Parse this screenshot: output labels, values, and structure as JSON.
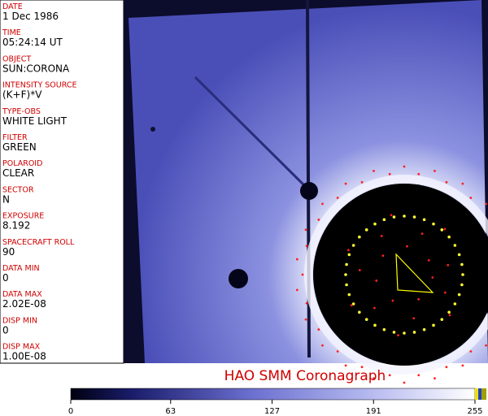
{
  "panel": {
    "fields": [
      {
        "label": "DATE",
        "value": "1 Dec 1986"
      },
      {
        "label": "TIME",
        "value": "05:24:14 UT"
      },
      {
        "label": "OBJECT",
        "value": "SUN:CORONA"
      },
      {
        "label": "INTENSITY SOURCE",
        "value": "(K+F)*V"
      },
      {
        "label": "TYPE-OBS",
        "value": "WHITE LIGHT"
      },
      {
        "label": "FILTER",
        "value": "GREEN"
      },
      {
        "label": "POLAROID",
        "value": "CLEAR"
      },
      {
        "label": "SECTOR",
        "value": "N"
      },
      {
        "label": "EXPOSURE",
        "value": "8.192"
      },
      {
        "label": "SPACECRAFT ROLL",
        "value": "90"
      },
      {
        "label": "DATA MIN",
        "value": "0"
      },
      {
        "label": "DATA MAX",
        "value": "2.02E-08"
      },
      {
        "label": "DISP MIN",
        "value": "0"
      },
      {
        "label": "DISP MAX",
        "value": "1.00E-08"
      }
    ]
  },
  "image": {
    "title": "HAO  SMM Coronagraph"
  },
  "colorbar": {
    "lim": [
      0,
      255
    ],
    "ticks": [
      0,
      63,
      127,
      191,
      255
    ]
  }
}
